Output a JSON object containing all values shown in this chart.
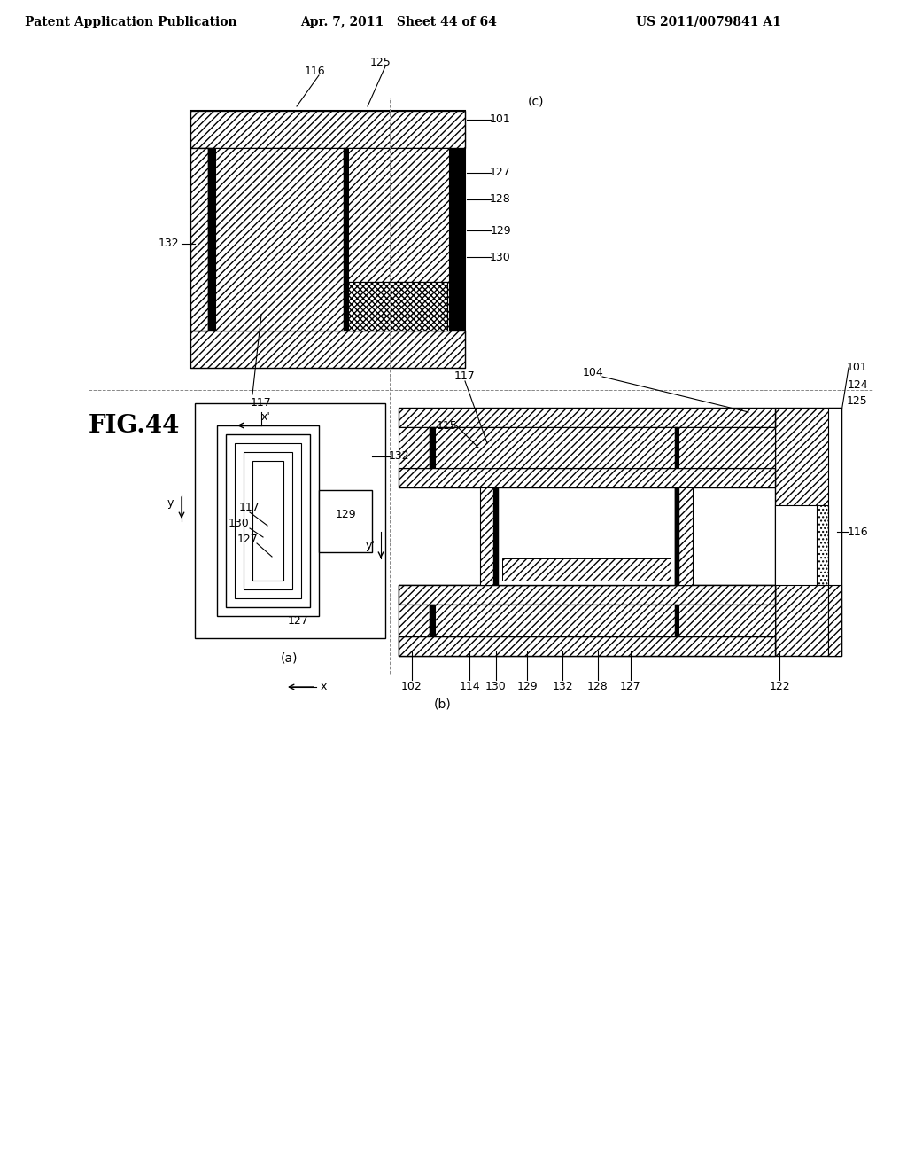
{
  "title_left": "Patent Application Publication",
  "title_mid": "Apr. 7, 2011   Sheet 44 of 64",
  "title_right": "US 2011/0079841 A1",
  "fig_label": "FIG.44",
  "background": "#ffffff"
}
